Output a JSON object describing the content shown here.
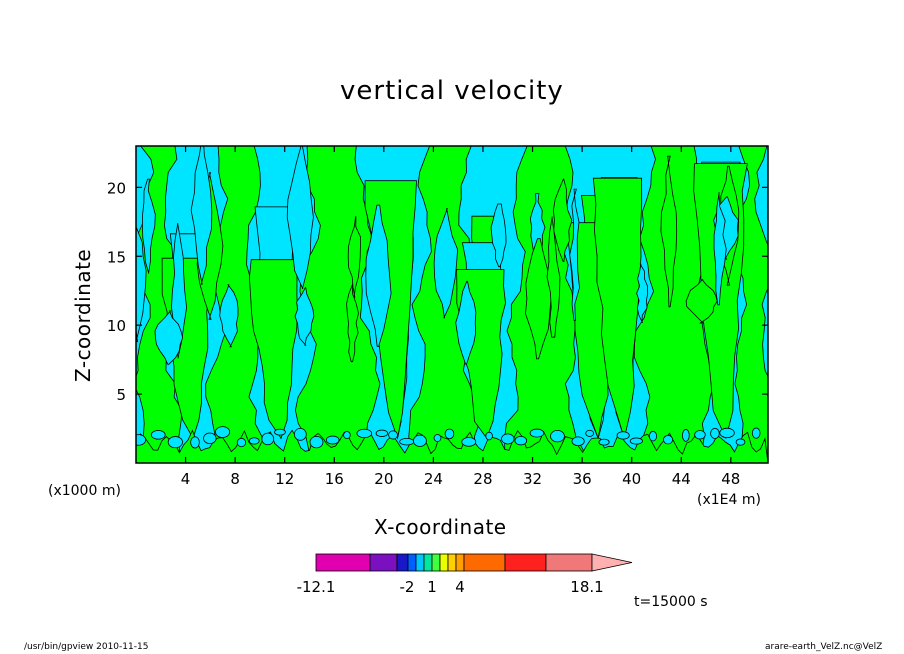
{
  "figure": {
    "title": "vertical velocity",
    "time_stamp": "t=15000 s",
    "footer_left": "/usr/bin/gpview  2010-11-15",
    "footer_right": "arare-earth_VelZ.nc@VelZ",
    "y_unit_note": "(x1000 m)",
    "x_unit_note": "(x1E4 m)"
  },
  "colors": {
    "positive_fill": "#00ff00",
    "negative_fill": "#00e5ff",
    "contour_line": "#000000"
  },
  "chart_data": {
    "type": "heatmap",
    "title": "vertical velocity",
    "xlabel": "X-coordinate",
    "ylabel": "Z-coordinate",
    "xlim": [
      0,
      51
    ],
    "ylim": [
      0,
      23
    ],
    "x_ticks": [
      4,
      8,
      12,
      16,
      20,
      24,
      28,
      32,
      36,
      40,
      44,
      48
    ],
    "y_ticks": [
      5,
      10,
      15,
      20
    ],
    "colorbar": {
      "labels": [
        "-12.1",
        "-2",
        "1",
        "4",
        "18.1"
      ],
      "colors": [
        "#e000b0",
        "#7a10c0",
        "#1818c8",
        "#0060ff",
        "#00c8ff",
        "#00e8a0",
        "#40ff40",
        "#e8ff00",
        "#ffd000",
        "#ffa000",
        "#ff6a00",
        "#ff2020",
        "#f07878",
        "#ffb0b0"
      ],
      "extend": "max"
    },
    "plumes_x": [
      4.6,
      11.7,
      21.1,
      28.3,
      37.3,
      39.4,
      47.6
    ]
  }
}
